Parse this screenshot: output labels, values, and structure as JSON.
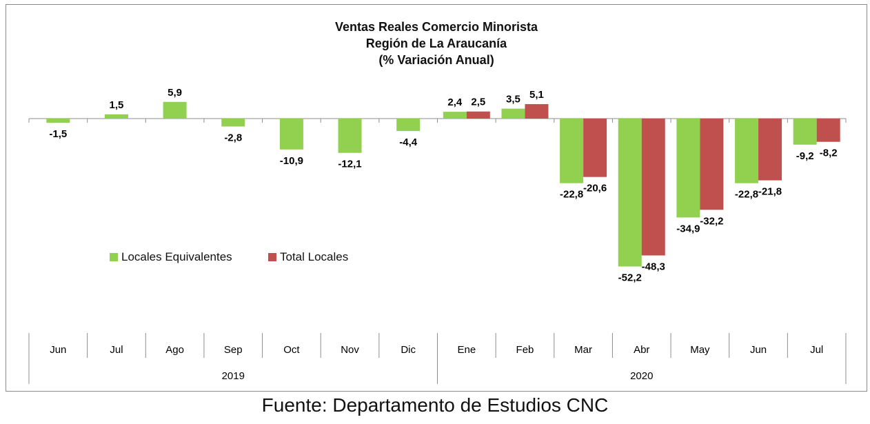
{
  "chart_data": {
    "type": "bar",
    "title": [
      "Ventas Reales Comercio Minorista",
      "Región de La Araucanía",
      "(% Variación Anual)"
    ],
    "categories": [
      "Jun",
      "Jul",
      "Ago",
      "Sep",
      "Oct",
      "Nov",
      "Dic",
      "Ene",
      "Feb",
      "Mar",
      "Abr",
      "May",
      "Jun",
      "Jul"
    ],
    "year_groups": [
      {
        "label": "2019",
        "start": 0,
        "end": 6
      },
      {
        "label": "2020",
        "start": 7,
        "end": 13
      }
    ],
    "series": [
      {
        "name": "Locales Equivalentes",
        "color": "#92d050",
        "values": [
          -1.5,
          1.5,
          5.9,
          -2.8,
          -10.9,
          -12.1,
          -4.4,
          2.4,
          3.5,
          -22.8,
          -52.2,
          -34.9,
          -22.8,
          -9.2
        ],
        "labels": [
          "-1,5",
          "1,5",
          "5,9",
          "-2,8",
          "-10,9",
          "-12,1",
          "-4,4",
          "2,4",
          "3,5",
          "-22,8",
          "-52,2",
          "-34,9",
          "-22,8",
          "-9,2"
        ]
      },
      {
        "name": "Total Locales",
        "color": "#c0504d",
        "values": [
          null,
          null,
          null,
          null,
          null,
          null,
          null,
          2.5,
          5.1,
          -20.6,
          -48.3,
          -32.2,
          -21.8,
          -8.2
        ],
        "labels": [
          null,
          null,
          null,
          null,
          null,
          null,
          null,
          "2,5",
          "5,1",
          "-20,6",
          "-48,3",
          "-32,2",
          "-21,8",
          "-8,2"
        ]
      }
    ],
    "legend_position": "middle-left",
    "grid": false
  },
  "source_text": "Fuente: Departamento de Estudios CNC"
}
